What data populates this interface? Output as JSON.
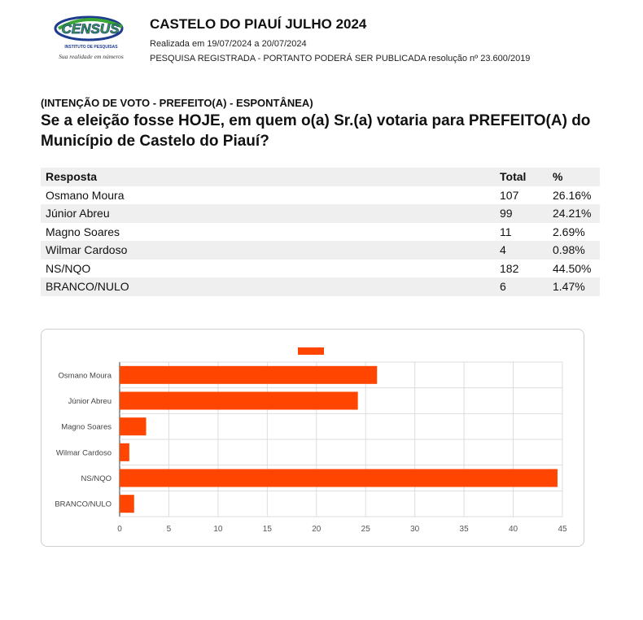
{
  "header": {
    "logo_text": "CENSUS",
    "logo_subtext": "INSTITUTO DE PESQUISAS",
    "logo_tagline": "Sua realidade em números",
    "title": "CASTELO DO PIAUÍ JULHO 2024",
    "dates": "Realizada em 19/07/2024 a 20/07/2024",
    "registration": "PESQUISA REGISTRADA - PORTANTO PODERÁ SER PUBLICADA resolução nº 23.600/2019"
  },
  "question": {
    "tag": "(INTENÇÃO DE VOTO - PREFEITO(A) - ESPONTÂNEA)",
    "text": "Se a eleição fosse HOJE, em quem o(a) Sr.(a) votaria para PREFEITO(A) do Município de Castelo do Piauí?"
  },
  "table": {
    "headers": [
      "Resposta",
      "Total",
      "%"
    ],
    "rows": [
      [
        "Osmano Moura",
        "107",
        "26.16%"
      ],
      [
        "Júnior Abreu",
        "99",
        "24.21%"
      ],
      [
        "Magno Soares",
        "11",
        "2.69%"
      ],
      [
        "Wilmar Cardoso",
        "4",
        "0.98%"
      ],
      [
        "NS/NQO",
        "182",
        "44.50%"
      ],
      [
        "BRANCO/NULO",
        "6",
        "1.47%"
      ]
    ]
  },
  "chart_data": {
    "type": "bar",
    "orientation": "horizontal",
    "categories": [
      "Osmano Moura",
      "Júnior Abreu",
      "Magno Soares",
      "Wilmar Cardoso",
      "NS/NQO",
      "BRANCO/NULO"
    ],
    "values": [
      26.16,
      24.21,
      2.69,
      0.98,
      44.5,
      1.47
    ],
    "xlim": [
      0,
      45
    ],
    "xticks": [
      0,
      5,
      10,
      15,
      20,
      25,
      30,
      35,
      40,
      45
    ],
    "grid": true,
    "legend": "top-center",
    "bar_color": "#ff4500",
    "grid_color": "#dddddd",
    "title": "",
    "xlabel": "",
    "ylabel": ""
  }
}
